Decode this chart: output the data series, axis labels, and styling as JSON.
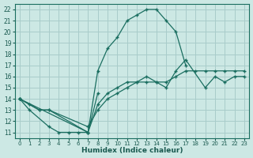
{
  "xlabel": "Humidex (Indice chaleur)",
  "bg_color": "#cce8e4",
  "grid_color": "#a8ccca",
  "line_color": "#1a6e60",
  "xlim": [
    -0.5,
    23.5
  ],
  "ylim": [
    10.5,
    22.5
  ],
  "xticks": [
    0,
    1,
    2,
    3,
    4,
    5,
    6,
    7,
    8,
    9,
    10,
    11,
    12,
    13,
    14,
    15,
    16,
    17,
    18,
    19,
    20,
    21,
    22,
    23
  ],
  "yticks": [
    11,
    12,
    13,
    14,
    15,
    16,
    17,
    18,
    19,
    20,
    21,
    22
  ],
  "series": [
    {
      "x": [
        0,
        2,
        3,
        7,
        8,
        9,
        10,
        11,
        12,
        13,
        14,
        15,
        16,
        17
      ],
      "y": [
        14.0,
        13.0,
        13.0,
        11.0,
        16.5,
        18.5,
        19.5,
        21.0,
        21.5,
        22.0,
        22.0,
        21.0,
        20.0,
        17.0
      ]
    },
    {
      "x": [
        0,
        7,
        8,
        9,
        10,
        11,
        12,
        13,
        14,
        15,
        16,
        17,
        19,
        20,
        21,
        22,
        23
      ],
      "y": [
        14.0,
        11.0,
        13.5,
        14.5,
        15.0,
        15.5,
        15.5,
        16.0,
        15.5,
        15.0,
        16.5,
        17.5,
        15.0,
        16.0,
        15.5,
        16.0,
        16.0
      ]
    },
    {
      "x": [
        0,
        1,
        2,
        3,
        7,
        8,
        9,
        10,
        11,
        12,
        13,
        14,
        15,
        16,
        17,
        18,
        19,
        20,
        21,
        22,
        23
      ],
      "y": [
        14.0,
        13.5,
        13.0,
        13.0,
        11.5,
        13.0,
        14.0,
        14.5,
        15.0,
        15.5,
        15.5,
        15.5,
        15.5,
        16.0,
        16.5,
        16.5,
        16.5,
        16.5,
        16.5,
        16.5,
        16.5
      ]
    },
    {
      "x": [
        0,
        1,
        3,
        4,
        5,
        6,
        7,
        8
      ],
      "y": [
        14.0,
        13.0,
        11.5,
        11.0,
        11.0,
        11.0,
        11.0,
        14.5
      ]
    }
  ]
}
